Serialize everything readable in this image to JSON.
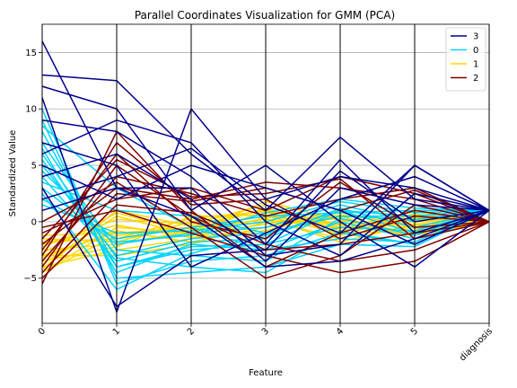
{
  "chart_data": {
    "type": "line",
    "title": "Parallel Coordinates Visualization for GMM (PCA)",
    "xlabel": "Feature",
    "ylabel": "Standardized Value",
    "categories": [
      "0",
      "1",
      "2",
      "3",
      "4",
      "5",
      "diagnosis"
    ],
    "ylim": [
      -9,
      17.5
    ],
    "yticks": [
      -5,
      0,
      5,
      10,
      15
    ],
    "ytick_labels": [
      "−5",
      "0",
      "5",
      "10",
      "15"
    ],
    "grid": true,
    "legend_position": "top-right",
    "legend": [
      {
        "label": "3",
        "color": "#00008b"
      },
      {
        "label": "0",
        "color": "#00d5ff"
      },
      {
        "label": "1",
        "color": "#ffd700"
      },
      {
        "label": "2",
        "color": "#800000"
      }
    ],
    "series": [
      {
        "name": "1",
        "color": "#ffd700",
        "lines": [
          [
            -3.0,
            -1.0,
            -0.5,
            0.5,
            -1.0,
            -0.8,
            0
          ],
          [
            -4.5,
            -0.5,
            -1.0,
            0.8,
            0.5,
            -1.5,
            0
          ],
          [
            -2.5,
            -2.0,
            -0.8,
            1.2,
            -0.5,
            0.2,
            0
          ],
          [
            -3.8,
            0.5,
            -1.2,
            -0.2,
            0.8,
            -0.5,
            0
          ],
          [
            -1.8,
            -1.5,
            0.3,
            0.9,
            -1.2,
            0.7,
            0
          ],
          [
            -4.0,
            -2.5,
            -1.5,
            0.4,
            0.2,
            -1.0,
            0
          ],
          [
            -2.2,
            0.2,
            -0.2,
            1.5,
            -0.8,
            0.0,
            0
          ],
          [
            -3.2,
            -0.8,
            -1.8,
            -0.5,
            0.6,
            -0.3,
            0
          ],
          [
            -1.5,
            -1.8,
            0.0,
            1.0,
            -0.3,
            -1.2,
            0
          ],
          [
            -4.5,
            -1.2,
            -0.6,
            0.2,
            -1.5,
            0.4,
            0
          ],
          [
            -2.8,
            0.8,
            -1.0,
            1.8,
            0.1,
            -0.6,
            0
          ],
          [
            -3.5,
            -2.2,
            0.5,
            0.6,
            -0.6,
            0.9,
            0
          ],
          [
            -2.0,
            -0.3,
            -1.4,
            -0.8,
            1.0,
            -0.9,
            0
          ],
          [
            -4.2,
            1.0,
            -0.4,
            1.1,
            -0.2,
            0.3,
            0
          ],
          [
            -1.2,
            -1.0,
            -0.9,
            0.3,
            -1.8,
            -0.2,
            0
          ],
          [
            -3.0,
            -3.0,
            -2.0,
            0.0,
            0.4,
            0.6,
            0
          ]
        ]
      },
      {
        "name": "0",
        "color": "#00d5ff",
        "lines": [
          [
            8.0,
            -4.0,
            -2.5,
            -2.0,
            1.0,
            -1.0,
            1.0
          ],
          [
            5.0,
            -3.0,
            -1.5,
            -1.0,
            0.5,
            0.5,
            1.0
          ],
          [
            10.0,
            -5.5,
            -3.5,
            -3.0,
            -1.0,
            -2.0,
            1.0
          ],
          [
            3.0,
            -2.0,
            -1.0,
            -0.5,
            1.5,
            0.0,
            1.0
          ],
          [
            6.5,
            -4.5,
            -2.0,
            -2.5,
            0.0,
            -1.5,
            1.0
          ],
          [
            2.0,
            -1.5,
            -0.5,
            0.5,
            0.8,
            1.0,
            1.0
          ],
          [
            9.0,
            -5.0,
            -4.5,
            -4.0,
            -2.0,
            -2.2,
            1.0
          ],
          [
            4.0,
            -3.5,
            -1.8,
            -1.5,
            1.2,
            -0.5,
            1.0
          ],
          [
            7.0,
            -2.5,
            -3.0,
            -3.5,
            0.3,
            -1.2,
            1.0
          ],
          [
            1.5,
            -1.0,
            -0.8,
            0.0,
            1.8,
            0.8,
            1.0
          ],
          [
            5.5,
            -4.0,
            -2.2,
            -2.0,
            -0.5,
            -0.8,
            1.0
          ],
          [
            3.5,
            1.0,
            0.5,
            -1.0,
            0.5,
            0.2,
            1.0
          ],
          [
            8.5,
            3.0,
            -0.5,
            -2.5,
            -1.5,
            -1.8,
            1.0
          ],
          [
            2.5,
            -6.0,
            -2.8,
            -1.2,
            1.0,
            0.5,
            1.0
          ],
          [
            6.0,
            -3.2,
            -4.0,
            -4.5,
            -0.8,
            -2.0,
            1.0
          ],
          [
            4.5,
            -1.8,
            -1.2,
            0.8,
            2.0,
            1.2,
            1.0
          ]
        ]
      },
      {
        "name": "2",
        "color": "#800000",
        "lines": [
          [
            -5.5,
            8.0,
            1.0,
            -4.0,
            -1.0,
            1.0,
            0
          ],
          [
            -2.0,
            3.0,
            2.0,
            3.5,
            3.0,
            2.0,
            0
          ],
          [
            -4.0,
            5.0,
            0.5,
            -2.5,
            -2.0,
            -1.0,
            0
          ],
          [
            -1.0,
            2.0,
            3.0,
            1.0,
            4.0,
            2.5,
            0
          ],
          [
            -3.0,
            7.0,
            1.5,
            2.0,
            -1.5,
            0.5,
            0
          ],
          [
            -0.5,
            1.0,
            -1.0,
            -3.0,
            -4.5,
            -3.5,
            0
          ],
          [
            -3.5,
            4.0,
            2.5,
            0.5,
            2.0,
            3.0,
            0
          ],
          [
            -2.5,
            6.0,
            0.0,
            -1.5,
            3.5,
            -0.5,
            0
          ],
          [
            -4.5,
            2.5,
            1.8,
            3.0,
            1.0,
            2.8,
            0
          ],
          [
            0.0,
            3.5,
            -0.5,
            -5.0,
            -3.0,
            1.5,
            0
          ],
          [
            -1.5,
            5.5,
            2.2,
            2.5,
            3.8,
            -1.5,
            0
          ],
          [
            -5.0,
            1.5,
            0.8,
            -2.0,
            -3.5,
            -2.5,
            0
          ]
        ]
      },
      {
        "name": "3",
        "color": "#00008b",
        "lines": [
          [
            16.0,
            3.0,
            3.0,
            -3.0,
            -2.0,
            5.0,
            1.0
          ],
          [
            13.0,
            12.5,
            6.0,
            1.0,
            7.5,
            2.0,
            1.0
          ],
          [
            12.0,
            10.0,
            1.0,
            5.0,
            0.0,
            -4.0,
            1.0
          ],
          [
            11.0,
            -8.0,
            10.0,
            2.0,
            4.0,
            3.0,
            1.0
          ],
          [
            9.0,
            8.0,
            4.0,
            -2.0,
            5.5,
            -1.0,
            1.0
          ],
          [
            7.0,
            5.0,
            -4.0,
            -1.0,
            2.0,
            4.0,
            1.0
          ],
          [
            6.0,
            9.0,
            7.0,
            0.0,
            -3.0,
            2.5,
            1.0
          ],
          [
            5.0,
            2.0,
            5.0,
            3.0,
            1.0,
            -2.0,
            1.0
          ],
          [
            4.0,
            6.0,
            2.0,
            -3.5,
            3.0,
            1.5,
            1.0
          ],
          [
            3.0,
            -7.5,
            -3.0,
            -2.5,
            4.5,
            0.0,
            1.0
          ],
          [
            2.0,
            4.0,
            6.5,
            1.5,
            -1.0,
            5.0,
            1.0
          ],
          [
            1.0,
            3.0,
            0.5,
            -4.0,
            -3.5,
            -1.5,
            1.0
          ]
        ]
      }
    ]
  }
}
